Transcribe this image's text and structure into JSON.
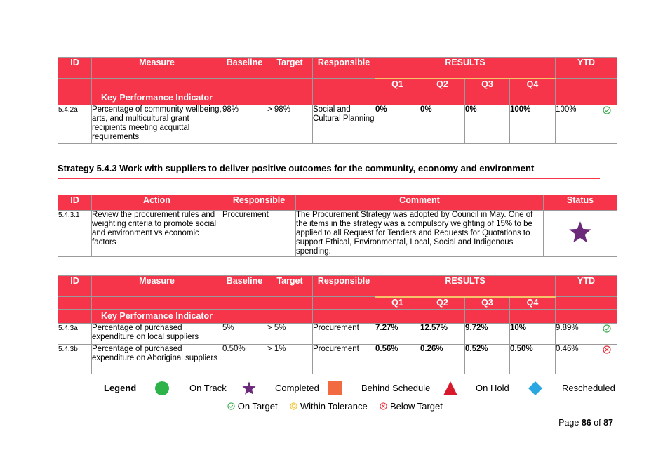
{
  "kpi_header": {
    "id": "ID",
    "measure": "Measure",
    "baseline": "Baseline",
    "target": "Target",
    "responsible": "Responsible",
    "results": "RESULTS",
    "ytd": "YTD",
    "q1": "Q1",
    "q2": "Q2",
    "q3": "Q3",
    "q4": "Q4",
    "kpi_label": "Key Performance Indicator"
  },
  "table1": {
    "rows": [
      {
        "id": "5.4.2a",
        "measure": "Percentage of community wellbeing, arts, and multicultural grant recipients meeting acquittal requirements",
        "baseline": "98%",
        "target": "> 98%",
        "responsible": "Social and Cultural Planning",
        "q1": "0%",
        "q2": "0%",
        "q3": "0%",
        "q4": "100%",
        "ytd": "100%",
        "ytd_status": "on-target"
      }
    ]
  },
  "strategy": {
    "title": "Strategy 5.4.3 Work with suppliers to deliver positive outcomes for the community, economy and environment"
  },
  "action_table": {
    "header": {
      "id": "ID",
      "action": "Action",
      "responsible": "Responsible",
      "comment": "Comment",
      "status": "Status"
    },
    "rows": [
      {
        "id": "5.4.3.1",
        "action": "Review the procurement rules and weighting criteria to promote social and environment vs economic factors",
        "responsible": "Procurement",
        "comment": "The Procurement Strategy was adopted by Council in May. One of the items in the strategy was a compulsory weighting of 15% to be applied to all Request for Tenders and Requests for Quotations to support Ethical, Environmental, Local, Social and Indigenous spending.",
        "status": "completed-star"
      }
    ]
  },
  "table3": {
    "rows": [
      {
        "id": "5.4.3a",
        "measure": "Percentage of purchased expenditure on local suppliers",
        "baseline": "5%",
        "target": "> 5%",
        "responsible": "Procurement",
        "q1": "7.27%",
        "q2": "12.57%",
        "q3": "9.72%",
        "q4": "10%",
        "ytd": "9.89%",
        "ytd_status": "on-target"
      },
      {
        "id": "5.4.3b",
        "measure": "Percentage of purchased expenditure on Aboriginal suppliers",
        "baseline": "0.50%",
        "target": "> 1%",
        "responsible": "Procurement",
        "q1": "0.56%",
        "q2": "0.26%",
        "q3": "0.52%",
        "q4": "0.50%",
        "ytd": "0.46%",
        "ytd_status": "below-target"
      }
    ]
  },
  "legend": {
    "title": "Legend",
    "on_track": "On Track",
    "completed": "Completed",
    "behind_schedule": "Behind Schedule",
    "on_hold": "On Hold",
    "rescheduled": "Rescheduled",
    "on_target": "On Target",
    "within_tolerance": "Within Tolerance",
    "below_target": "Below Target"
  },
  "colors": {
    "header_red": "#f6344a",
    "on_track_green": "#2db34a",
    "completed_purple": "#6b2a7a",
    "behind_orange": "#f26a3f",
    "on_hold_red": "#d7192b",
    "rescheduled_blue": "#2aa7e0",
    "on_target_green": "#3aaa4a",
    "within_tolerance_yellow": "#f2c430",
    "below_target_red": "#e5303a"
  },
  "page": {
    "prefix": "Page ",
    "current": "86",
    "of": " of ",
    "total": "87"
  }
}
